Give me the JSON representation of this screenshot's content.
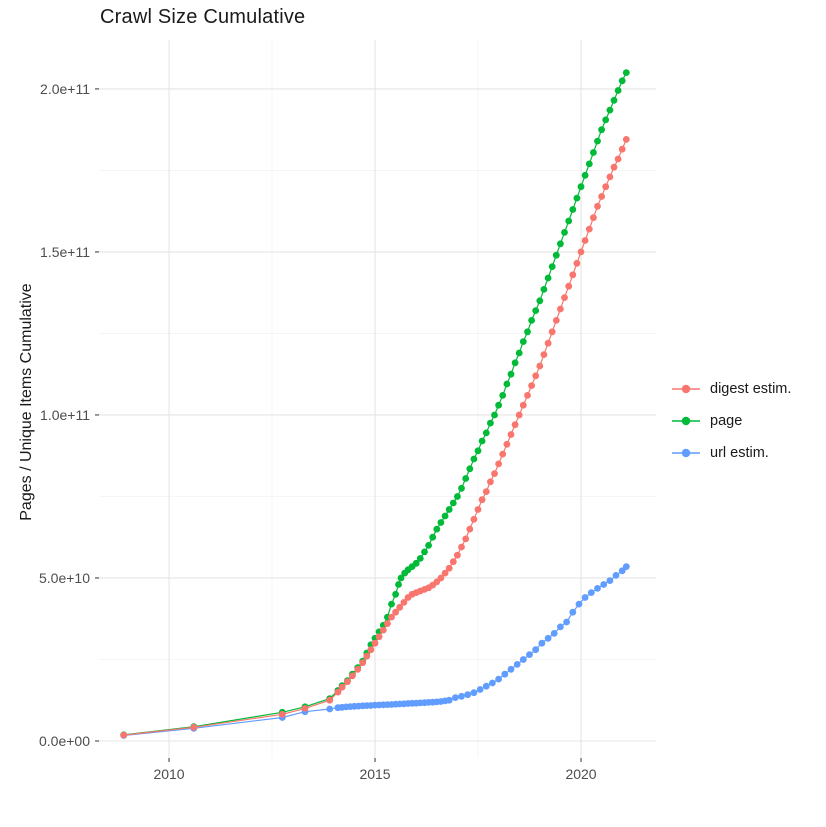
{
  "title": "Crawl Size Cumulative",
  "colors": {
    "background": "#ffffff",
    "grid_major": "#e4e4e4",
    "grid_minor": "#f3f3f3",
    "tick_mark": "#333333",
    "tick_label": "#4d4d4d",
    "text": "#1a1a1a"
  },
  "legend": {
    "position": "right",
    "items": [
      {
        "label": "digest estim."
      },
      {
        "label": "page"
      },
      {
        "label": "url estim."
      }
    ]
  },
  "chart_data": {
    "type": "scatter",
    "title": "Crawl Size Cumulative",
    "xlabel": "",
    "ylabel": "Pages / Unique Items Cumulative",
    "grid": true,
    "legend_position": "right",
    "x_axis": {
      "domain": [
        2008.3,
        2021.82
      ],
      "ticks": [
        {
          "value": 2010,
          "label": "2010"
        },
        {
          "value": 2015,
          "label": "2015"
        },
        {
          "value": 2020,
          "label": "2020"
        }
      ],
      "minor": [
        2012.5,
        2017.5
      ]
    },
    "y_axis": {
      "label": "Pages / Unique Items Cumulative",
      "range": [
        0,
        215000000000.0
      ],
      "value_unit_multiplier": 1000000000.0,
      "ticks": [
        {
          "value_billions": 0,
          "label": "0.0e+00"
        },
        {
          "value_billions": 50,
          "label": "5.0e+10"
        },
        {
          "value_billions": 100,
          "label": "1.0e+11"
        },
        {
          "value_billions": 150,
          "label": "1.5e+11"
        },
        {
          "value_billions": 200,
          "label": "2.0e+11"
        }
      ],
      "minor_billions": [
        25,
        75,
        125,
        175
      ]
    },
    "series": [
      {
        "name": "digest estim.",
        "color": "#F8766D",
        "points_format": "[year, cumulative_count_billions]",
        "points": [
          [
            2008.9,
            1.8
          ],
          [
            2010.6,
            4.2
          ],
          [
            2012.75,
            8.2
          ],
          [
            2013.3,
            10
          ],
          [
            2013.9,
            12.5
          ],
          [
            2014.1,
            15
          ],
          [
            2014.2,
            16.5
          ],
          [
            2014.33,
            18.2
          ],
          [
            2014.45,
            20
          ],
          [
            2014.58,
            22
          ],
          [
            2014.7,
            24
          ],
          [
            2014.8,
            26
          ],
          [
            2014.9,
            28
          ],
          [
            2015.0,
            30
          ],
          [
            2015.1,
            32
          ],
          [
            2015.2,
            34
          ],
          [
            2015.3,
            36
          ],
          [
            2015.4,
            38
          ],
          [
            2015.5,
            39.5
          ],
          [
            2015.6,
            41
          ],
          [
            2015.7,
            42.5
          ],
          [
            2015.8,
            44
          ],
          [
            2015.9,
            45
          ],
          [
            2016.0,
            45.5
          ],
          [
            2016.1,
            46
          ],
          [
            2016.2,
            46.5
          ],
          [
            2016.3,
            47
          ],
          [
            2016.4,
            47.8
          ],
          [
            2016.5,
            48.8
          ],
          [
            2016.6,
            50
          ],
          [
            2016.7,
            51.5
          ],
          [
            2016.8,
            53
          ],
          [
            2016.9,
            55
          ],
          [
            2017.0,
            57
          ],
          [
            2017.1,
            59.5
          ],
          [
            2017.2,
            62
          ],
          [
            2017.3,
            65
          ],
          [
            2017.4,
            68
          ],
          [
            2017.5,
            71
          ],
          [
            2017.6,
            74
          ],
          [
            2017.7,
            76.5
          ],
          [
            2017.8,
            79.5
          ],
          [
            2017.9,
            82
          ],
          [
            2018.0,
            85
          ],
          [
            2018.1,
            88
          ],
          [
            2018.2,
            91
          ],
          [
            2018.3,
            94
          ],
          [
            2018.4,
            97
          ],
          [
            2018.5,
            100
          ],
          [
            2018.6,
            103
          ],
          [
            2018.7,
            106
          ],
          [
            2018.8,
            109
          ],
          [
            2018.9,
            112
          ],
          [
            2019.0,
            115
          ],
          [
            2019.1,
            118.5
          ],
          [
            2019.2,
            122
          ],
          [
            2019.3,
            125.5
          ],
          [
            2019.4,
            129
          ],
          [
            2019.5,
            132.5
          ],
          [
            2019.6,
            136
          ],
          [
            2019.7,
            139.5
          ],
          [
            2019.8,
            143
          ],
          [
            2019.9,
            146.5
          ],
          [
            2020.0,
            150
          ],
          [
            2020.1,
            153.5
          ],
          [
            2020.2,
            157
          ],
          [
            2020.3,
            160.5
          ],
          [
            2020.4,
            164
          ],
          [
            2020.5,
            167
          ],
          [
            2020.6,
            170
          ],
          [
            2020.7,
            173
          ],
          [
            2020.8,
            176
          ],
          [
            2020.9,
            178.5
          ],
          [
            2021.0,
            181.5
          ],
          [
            2021.1,
            184.5
          ]
        ]
      },
      {
        "name": "page",
        "color": "#00BA38",
        "points_format": "[year, cumulative_count_billions]",
        "points": [
          [
            2008.9,
            1.9
          ],
          [
            2010.6,
            4.4
          ],
          [
            2012.75,
            8.8
          ],
          [
            2013.3,
            10.5
          ],
          [
            2013.9,
            13
          ],
          [
            2014.1,
            15.5
          ],
          [
            2014.2,
            17
          ],
          [
            2014.33,
            18.5
          ],
          [
            2014.45,
            20.5
          ],
          [
            2014.58,
            22.5
          ],
          [
            2014.7,
            24.5
          ],
          [
            2014.8,
            27
          ],
          [
            2014.9,
            29.5
          ],
          [
            2015.0,
            31.5
          ],
          [
            2015.1,
            33.5
          ],
          [
            2015.2,
            35.5
          ],
          [
            2015.3,
            38
          ],
          [
            2015.4,
            42
          ],
          [
            2015.5,
            45
          ],
          [
            2015.57,
            48
          ],
          [
            2015.63,
            50
          ],
          [
            2015.72,
            51.5
          ],
          [
            2015.8,
            52.5
          ],
          [
            2015.9,
            53.5
          ],
          [
            2016.0,
            54.5
          ],
          [
            2016.1,
            56
          ],
          [
            2016.2,
            58
          ],
          [
            2016.3,
            60
          ],
          [
            2016.4,
            62.5
          ],
          [
            2016.5,
            65
          ],
          [
            2016.6,
            67
          ],
          [
            2016.7,
            69
          ],
          [
            2016.8,
            71
          ],
          [
            2016.9,
            73
          ],
          [
            2017.0,
            75
          ],
          [
            2017.1,
            77.5
          ],
          [
            2017.2,
            80.5
          ],
          [
            2017.3,
            83.5
          ],
          [
            2017.4,
            86.5
          ],
          [
            2017.5,
            89
          ],
          [
            2017.6,
            92
          ],
          [
            2017.7,
            94.5
          ],
          [
            2017.8,
            97.5
          ],
          [
            2017.9,
            100
          ],
          [
            2018.0,
            103
          ],
          [
            2018.1,
            106
          ],
          [
            2018.2,
            109.5
          ],
          [
            2018.3,
            112.5
          ],
          [
            2018.4,
            116
          ],
          [
            2018.5,
            119
          ],
          [
            2018.6,
            122.5
          ],
          [
            2018.7,
            125.5
          ],
          [
            2018.8,
            129
          ],
          [
            2018.9,
            132
          ],
          [
            2019.0,
            135
          ],
          [
            2019.1,
            138.5
          ],
          [
            2019.2,
            142
          ],
          [
            2019.3,
            145.5
          ],
          [
            2019.4,
            149
          ],
          [
            2019.5,
            152.5
          ],
          [
            2019.6,
            156
          ],
          [
            2019.7,
            159.5
          ],
          [
            2019.8,
            163
          ],
          [
            2019.9,
            166.5
          ],
          [
            2020.0,
            170
          ],
          [
            2020.1,
            173.5
          ],
          [
            2020.2,
            177
          ],
          [
            2020.3,
            180.5
          ],
          [
            2020.4,
            184
          ],
          [
            2020.5,
            187.5
          ],
          [
            2020.6,
            190.5
          ],
          [
            2020.7,
            193.5
          ],
          [
            2020.8,
            196.5
          ],
          [
            2020.9,
            199.5
          ],
          [
            2021.0,
            202.5
          ],
          [
            2021.1,
            205
          ]
        ]
      },
      {
        "name": "url estim.",
        "color": "#619CFF",
        "points_format": "[year, cumulative_count_billions]",
        "points": [
          [
            2008.9,
            1.7
          ],
          [
            2010.6,
            3.9
          ],
          [
            2012.75,
            7.2
          ],
          [
            2013.3,
            9
          ],
          [
            2013.9,
            9.8
          ],
          [
            2014.1,
            10.2
          ],
          [
            2014.2,
            10.35
          ],
          [
            2014.3,
            10.45
          ],
          [
            2014.4,
            10.55
          ],
          [
            2014.5,
            10.65
          ],
          [
            2014.6,
            10.7
          ],
          [
            2014.7,
            10.8
          ],
          [
            2014.8,
            10.85
          ],
          [
            2014.9,
            10.9
          ],
          [
            2015.0,
            11.0
          ],
          [
            2015.1,
            11.05
          ],
          [
            2015.2,
            11.1
          ],
          [
            2015.3,
            11.15
          ],
          [
            2015.4,
            11.2
          ],
          [
            2015.5,
            11.3
          ],
          [
            2015.6,
            11.35
          ],
          [
            2015.7,
            11.4
          ],
          [
            2015.8,
            11.5
          ],
          [
            2015.9,
            11.55
          ],
          [
            2016.0,
            11.6
          ],
          [
            2016.1,
            11.7
          ],
          [
            2016.2,
            11.75
          ],
          [
            2016.3,
            11.85
          ],
          [
            2016.4,
            11.9
          ],
          [
            2016.5,
            12.0
          ],
          [
            2016.6,
            12.1
          ],
          [
            2016.7,
            12.3
          ],
          [
            2016.8,
            12.5
          ],
          [
            2016.95,
            13.3
          ],
          [
            2017.1,
            13.7
          ],
          [
            2017.25,
            14.2
          ],
          [
            2017.4,
            14.8
          ],
          [
            2017.55,
            15.8
          ],
          [
            2017.7,
            16.8
          ],
          [
            2017.85,
            17.8
          ],
          [
            2018.0,
            19
          ],
          [
            2018.15,
            20.5
          ],
          [
            2018.3,
            22
          ],
          [
            2018.45,
            23.5
          ],
          [
            2018.6,
            25
          ],
          [
            2018.75,
            26.5
          ],
          [
            2018.9,
            28
          ],
          [
            2019.05,
            30
          ],
          [
            2019.2,
            31.5
          ],
          [
            2019.35,
            33
          ],
          [
            2019.5,
            35
          ],
          [
            2019.65,
            36.5
          ],
          [
            2019.8,
            39.5
          ],
          [
            2019.95,
            42
          ],
          [
            2020.1,
            44
          ],
          [
            2020.25,
            45.5
          ],
          [
            2020.4,
            46.8
          ],
          [
            2020.55,
            48
          ],
          [
            2020.7,
            49.2
          ],
          [
            2020.85,
            50.8
          ],
          [
            2021.0,
            52.2
          ],
          [
            2021.1,
            53.5
          ]
        ]
      }
    ]
  }
}
